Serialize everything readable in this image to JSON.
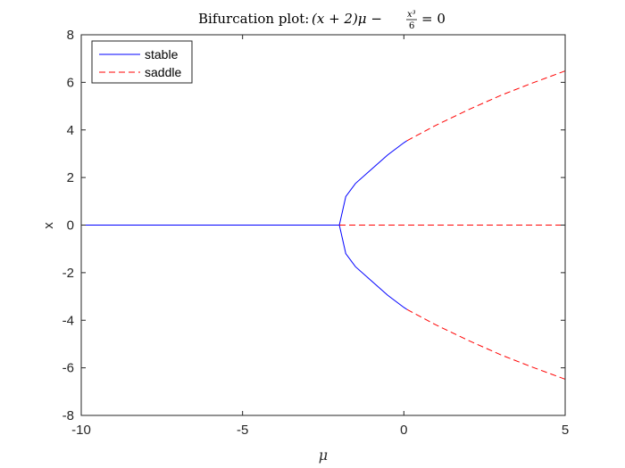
{
  "chart_data": {
    "type": "line",
    "title": "Bifurcation plot: (x + 2)μ − x³/6 = 0",
    "title_parts": {
      "prefix": "Bifurcation plot: ",
      "lhs": "(x + 2)μ −",
      "frac_num": "x³",
      "frac_den": "6",
      "rhs": "= 0"
    },
    "xlabel": "μ",
    "ylabel": "x",
    "xlim": [
      -10,
      5
    ],
    "ylim": [
      -8,
      8
    ],
    "x_ticks": [
      -10,
      -5,
      0,
      5
    ],
    "y_ticks": [
      -8,
      -6,
      -4,
      -2,
      0,
      2,
      4,
      6,
      8
    ],
    "grid": false,
    "legend_position": "top-left",
    "series": [
      {
        "name": "stable",
        "color": "#0000ff",
        "dash": "solid",
        "segments": [
          [
            [
              -10,
              0
            ],
            [
              -2,
              0
            ]
          ],
          [
            [
              -2,
              0
            ],
            [
              -1.8,
              1.2
            ],
            [
              -1.5,
              1.75
            ],
            [
              -1.0,
              2.35
            ],
            [
              -0.5,
              2.95
            ],
            [
              0,
              3.46
            ],
            [
              0.1,
              3.55
            ]
          ],
          [
            [
              -2,
              0
            ],
            [
              -1.8,
              -1.2
            ],
            [
              -1.5,
              -1.75
            ],
            [
              -1.0,
              -2.35
            ],
            [
              -0.5,
              -2.95
            ],
            [
              0,
              -3.46
            ],
            [
              0.1,
              -3.55
            ]
          ]
        ]
      },
      {
        "name": "saddle",
        "color": "#ff0000",
        "dash": "dashed",
        "segments": [
          [
            [
              -2,
              0
            ],
            [
              5,
              0
            ]
          ],
          [
            [
              0.1,
              3.55
            ],
            [
              1,
              4.2
            ],
            [
              2,
              4.85
            ],
            [
              3,
              5.45
            ],
            [
              4,
              5.98
            ],
            [
              5,
              6.48
            ]
          ],
          [
            [
              0.1,
              -3.55
            ],
            [
              1,
              -4.2
            ],
            [
              2,
              -4.85
            ],
            [
              3,
              -5.45
            ],
            [
              4,
              -5.98
            ],
            [
              5,
              -6.48
            ]
          ]
        ]
      }
    ]
  }
}
